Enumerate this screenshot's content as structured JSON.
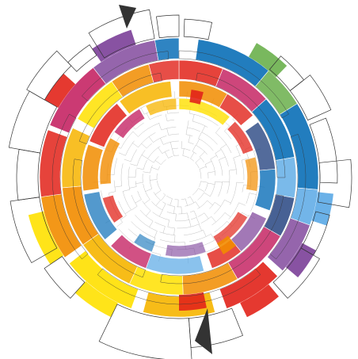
{
  "image": {
    "kind": "abstract-circular-infographic",
    "has_text": false
  },
  "palette": {
    "red": "#e2231a",
    "orange": "#f28c00",
    "yellow": "#ffe100",
    "amber": "#f7b500",
    "magenta": "#c2185b",
    "purple": "#7b3f98",
    "blue": "#0b6fb8",
    "lightblue": "#5aa9e6",
    "green": "#6ab04c",
    "navy": "#1a3a7a",
    "outline": "#333333",
    "thin_line": "#9a9a9a"
  },
  "pointers": [
    {
      "name": "top-pointer",
      "color": "#333333"
    },
    {
      "name": "bottom-pointer",
      "color": "#333333"
    }
  ]
}
